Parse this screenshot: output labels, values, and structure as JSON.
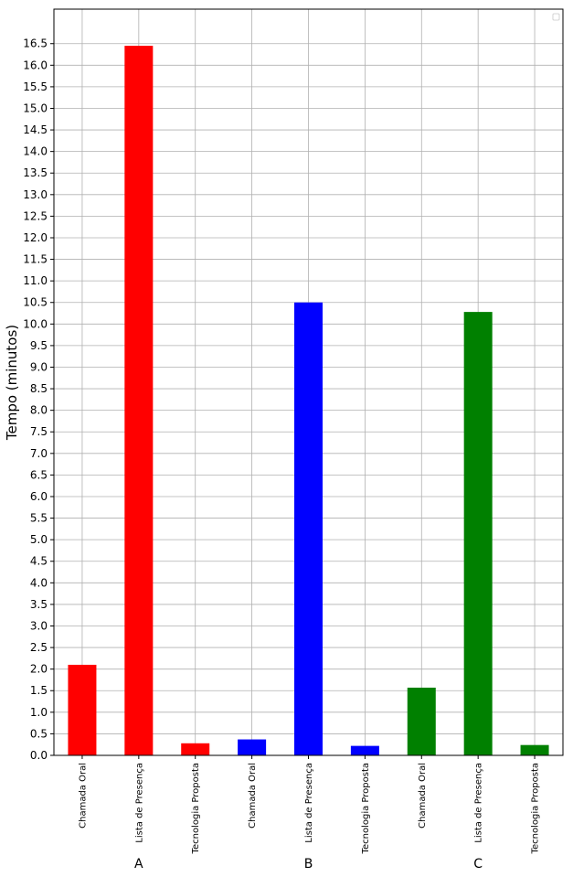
{
  "chart_data": {
    "type": "bar",
    "title": "",
    "xlabel": "",
    "ylabel": "Tempo (minutos)",
    "ylim": [
      0,
      17.3
    ],
    "yticks_step": 0.5,
    "ytick_max": 16.5,
    "grid": true,
    "legend": "top-right",
    "categories": [
      "Chamada Oral",
      "Lista de Presença",
      "Tecnologia Proposta",
      "Chamada Oral",
      "Lista de Presença",
      "Tecnologia Proposta",
      "Chamada Oral",
      "Lista de Presença",
      "Tecnologia Proposta"
    ],
    "values": [
      2.1,
      16.45,
      0.28,
      0.37,
      10.5,
      0.22,
      1.57,
      10.28,
      0.24
    ],
    "colors": [
      "#ff0000",
      "#ff0000",
      "#ff0000",
      "#0000ff",
      "#0000ff",
      "#0000ff",
      "#008000",
      "#008000",
      "#008000"
    ],
    "groups": [
      {
        "label": "A",
        "members": [
          0,
          1,
          2
        ]
      },
      {
        "label": "B",
        "members": [
          3,
          4,
          5
        ]
      },
      {
        "label": "C",
        "members": [
          6,
          7,
          8
        ]
      }
    ]
  }
}
